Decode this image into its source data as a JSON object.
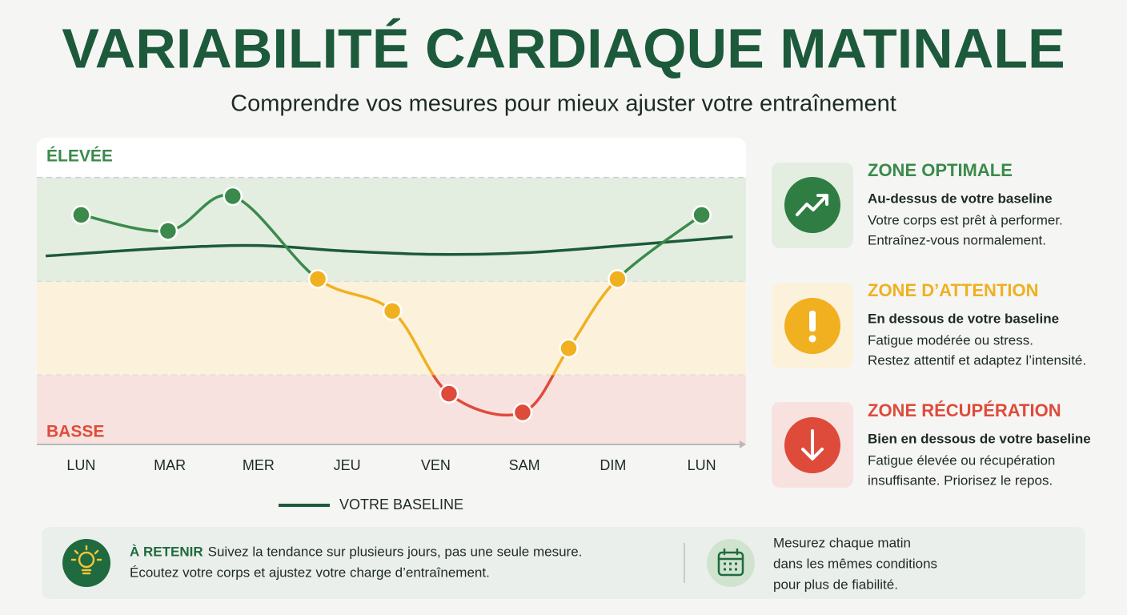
{
  "header": {
    "title": "VARIABILITÉ CARDIAQUE MATINALE",
    "subtitle": "Comprendre vos mesures pour mieux ajuster votre entraînement"
  },
  "chart_data": {
    "type": "line",
    "y_high_label": "ÉLEVÉE",
    "y_low_label": "BASSE",
    "xlim": [
      -0.5,
      7.5
    ],
    "ylim": [
      0,
      114
    ],
    "xticks": [
      {
        "value": 0,
        "label": "LUN"
      },
      {
        "value": 1,
        "label": "MAR"
      },
      {
        "value": 2,
        "label": "MER"
      },
      {
        "value": 3,
        "label": "JEU"
      },
      {
        "value": 4,
        "label": "VEN"
      },
      {
        "value": 5,
        "label": "SAM"
      },
      {
        "value": 6,
        "label": "DIM"
      },
      {
        "value": 7,
        "label": "LUN"
      }
    ],
    "zones": [
      {
        "from": 61,
        "to": 100,
        "color": "#3b8a4b",
        "fill": "#e3eee1"
      },
      {
        "from": 26,
        "to": 61,
        "color": "#f0b020",
        "fill": "#fcf2dc"
      },
      {
        "from": 0,
        "to": 26,
        "color": "#df4b3b",
        "fill": "#f8e2df"
      }
    ],
    "series": [
      {
        "name": "VOTRE BASELINE",
        "color": "#1d5a3a",
        "x": [
          -0.4,
          1,
          2,
          3,
          4,
          5,
          6,
          7.35
        ],
        "values": [
          70.6,
          73.6,
          74.5,
          72.4,
          71.2,
          71.8,
          74.2,
          77.8
        ]
      }
    ],
    "measurements": {
      "x": [
        0,
        0.98,
        1.71,
        2.67,
        3.51,
        4.15,
        4.98,
        5.5,
        6.05,
        7
      ],
      "values": [
        86,
        80,
        93,
        62,
        50,
        19,
        12,
        36,
        62,
        86
      ],
      "colors": [
        "#3b8a4b",
        "#3b8a4b",
        "#3b8a4b",
        "#f0b020",
        "#f0b020",
        "#df4b3b",
        "#df4b3b",
        "#f0b020",
        "#f0b020",
        "#3b8a4b"
      ]
    }
  },
  "cards": [
    {
      "title": "ZONE OPTIMALE",
      "subtitle": "Au-dessus de votre baseline",
      "lines": [
        "Votre corps est prêt à performer.",
        "Entraînez-vous normalement."
      ]
    },
    {
      "title": "ZONE D’ATTENTION",
      "subtitle": "En dessous de votre baseline",
      "lines": [
        "Fatigue modérée ou stress.",
        "Restez attentif et adaptez l’intensité."
      ]
    },
    {
      "title": "ZONE RÉCUPÉRATION",
      "subtitle": "Bien en dessous de votre baseline",
      "lines": [
        "Fatigue élevée ou récupération",
        "insuffisante. Priorisez le repos."
      ]
    }
  ],
  "tip": {
    "label": "À RETENIR",
    "lines": [
      "Suivez la tendance sur plusieurs jours, pas une seule mesure.",
      "Écoutez votre corps et ajustez votre charge d’entraînement."
    ]
  },
  "note": {
    "lines": [
      "Mesurez chaque matin",
      "dans les mêmes conditions",
      "pour plus de fiabilité."
    ]
  }
}
